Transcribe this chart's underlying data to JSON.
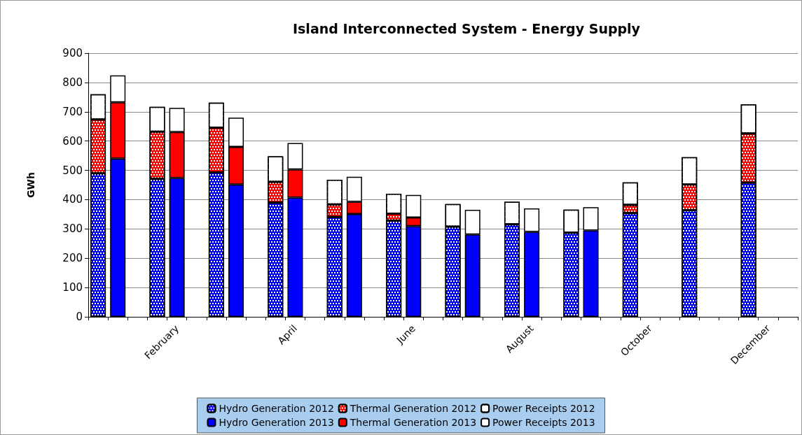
{
  "chart_data": {
    "type": "bar",
    "title": "Island Interconnected System - Energy Supply",
    "ylabel": "GWh",
    "categories": [
      null,
      null,
      null,
      null,
      "February",
      null,
      null,
      null,
      null,
      null,
      "April",
      null,
      null,
      null,
      null,
      null,
      "June",
      null,
      null,
      null,
      null,
      null,
      "August",
      null,
      null,
      null,
      null,
      null,
      "October",
      null,
      null,
      null,
      null,
      null,
      "December",
      null
    ],
    "stacked": true,
    "series": [
      {
        "name": "Hydro Generation 2012",
        "color": "#0000ff",
        "values": [
          490,
          null,
          null,
          471,
          null,
          null,
          493,
          null,
          null,
          390,
          null,
          null,
          341,
          null,
          null,
          328,
          null,
          null,
          308,
          null,
          null,
          316,
          null,
          null,
          287,
          null,
          null,
          354,
          null,
          null,
          364,
          null,
          null,
          458,
          null,
          null
        ]
      },
      {
        "name": "Thermal Generation 2012",
        "color": "#ff0000",
        "values": [
          184,
          null,
          null,
          161,
          null,
          null,
          153,
          null,
          null,
          71,
          null,
          null,
          43,
          null,
          null,
          24,
          null,
          null,
          null,
          null,
          null,
          null,
          null,
          null,
          null,
          null,
          null,
          28,
          null,
          null,
          88,
          null,
          null,
          168,
          null,
          null
        ]
      },
      {
        "name": "Power Receipts 2012",
        "color": "#ffffff",
        "values": [
          86,
          null,
          null,
          85,
          null,
          null,
          85,
          null,
          null,
          87,
          null,
          null,
          84,
          null,
          null,
          68,
          null,
          null,
          77,
          null,
          null,
          77,
          null,
          null,
          79,
          null,
          null,
          77,
          null,
          null,
          93,
          null,
          null,
          99,
          null,
          null
        ]
      },
      {
        "name": "Hydro Generation 2013",
        "color": "#0000ff",
        "values": [
          null,
          540,
          null,
          null,
          474,
          null,
          null,
          452,
          null,
          null,
          407,
          null,
          null,
          351,
          null,
          null,
          310,
          null,
          null,
          281,
          null,
          null,
          290,
          null,
          null,
          295,
          null,
          null,
          null,
          null,
          null,
          null,
          null,
          null,
          null,
          null
        ]
      },
      {
        "name": "Thermal Generation 2013",
        "color": "#ff0000",
        "values": [
          null,
          192,
          null,
          null,
          157,
          null,
          null,
          128,
          null,
          null,
          96,
          null,
          null,
          42,
          null,
          null,
          29,
          null,
          null,
          null,
          null,
          null,
          null,
          null,
          null,
          null,
          null,
          null,
          null,
          null,
          null,
          null,
          null,
          null,
          null,
          null
        ]
      },
      {
        "name": "Power Receipts 2013",
        "color": "#ffffff",
        "values": [
          null,
          92,
          null,
          null,
          82,
          null,
          null,
          100,
          null,
          null,
          90,
          null,
          null,
          85,
          null,
          null,
          77,
          null,
          null,
          84,
          null,
          null,
          80,
          null,
          null,
          79,
          null,
          null,
          null,
          null,
          null,
          null,
          null,
          null,
          null,
          null
        ]
      }
    ],
    "ylim": [
      0,
      900
    ],
    "yticks": [
      0,
      100,
      200,
      300,
      400,
      500,
      600,
      700,
      800,
      900
    ],
    "grid": "y",
    "legend": "bottom"
  }
}
